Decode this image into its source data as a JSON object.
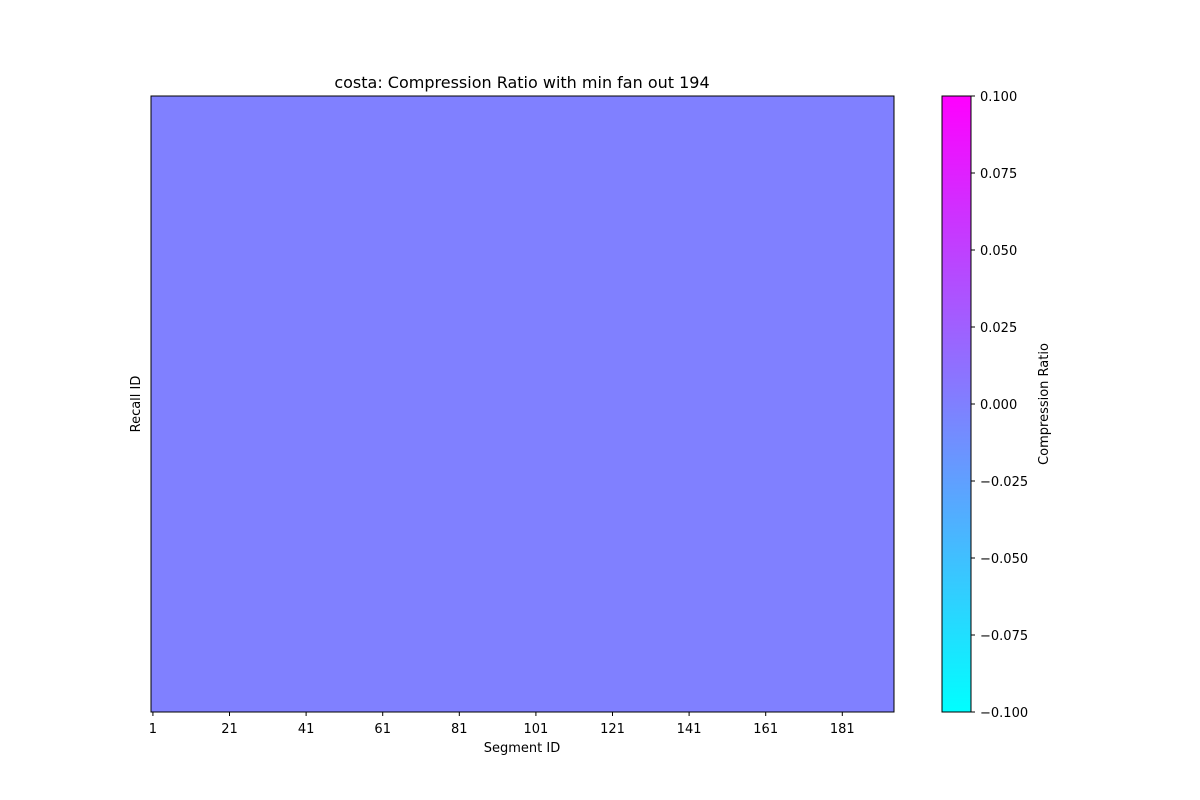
{
  "chart_data": {
    "type": "heatmap",
    "title": "costa: Compression Ratio with min fan out 194",
    "xlabel": "Segment ID",
    "ylabel": "Recall ID",
    "x_tick_labels": [
      "1",
      "21",
      "41",
      "61",
      "81",
      "101",
      "121",
      "141",
      "161",
      "181"
    ],
    "x_ticks": [
      1,
      21,
      41,
      61,
      81,
      101,
      121,
      141,
      161,
      181
    ],
    "xlim": [
      0.5,
      194.5
    ],
    "y_tick_labels": [],
    "values": [
      [
        0.0
      ]
    ],
    "colormap": "cool",
    "colorbar": {
      "label": "Compression Ratio",
      "range": [
        -0.1,
        0.1
      ],
      "ticks": [
        0.1,
        0.075,
        0.05,
        0.025,
        0.0,
        -0.025,
        -0.05,
        -0.075,
        -0.1
      ],
      "tick_labels": [
        "0.100",
        "0.075",
        "0.050",
        "0.025",
        "0.000",
        "−0.025",
        "−0.050",
        "−0.075",
        "−0.100"
      ],
      "color_low": "#00ffff",
      "color_high": "#ff00ff"
    },
    "grid": false
  }
}
